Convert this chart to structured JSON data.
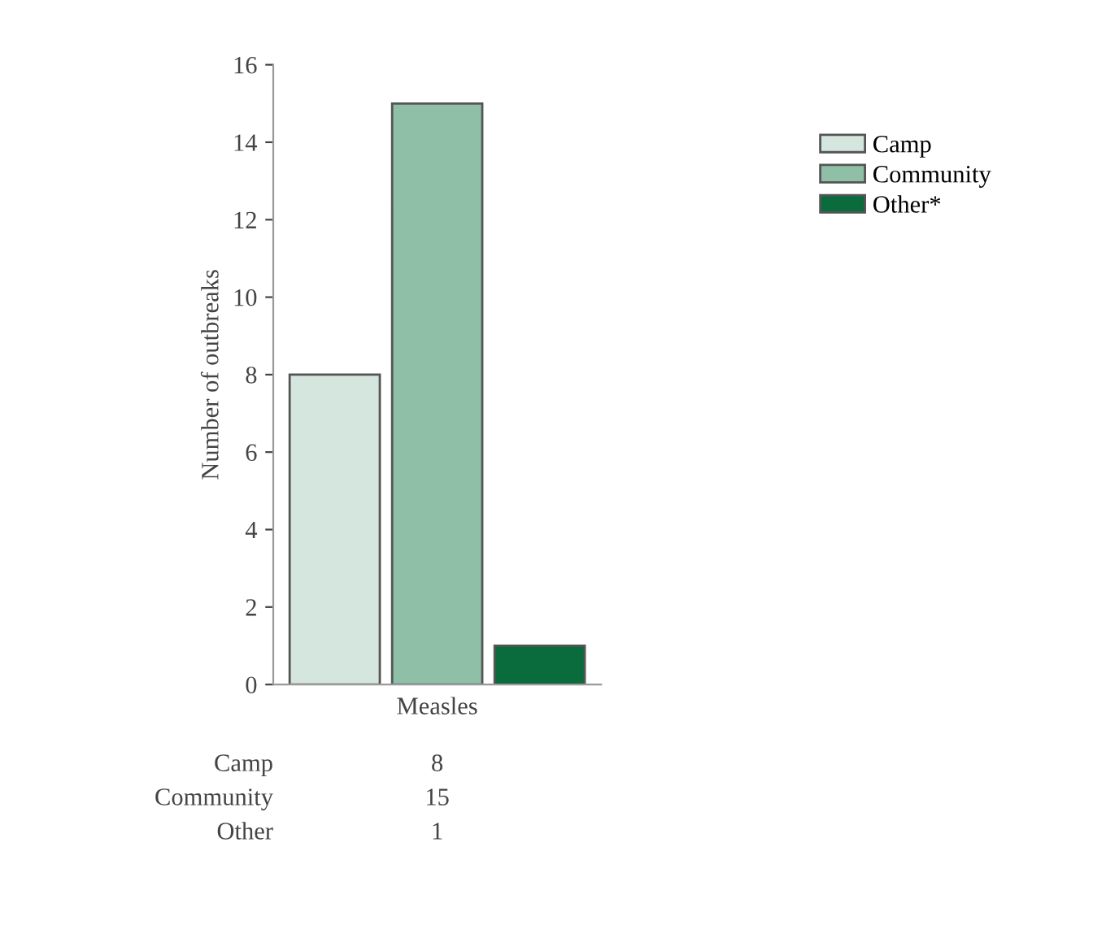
{
  "chart_data": {
    "type": "bar",
    "ylabel": "Number of outbreaks",
    "xlabel": "Measles",
    "categories": [
      null,
      null,
      null
    ],
    "series": [
      {
        "name": "Camp",
        "color": "#d5e6df",
        "values": [
          8,
          null,
          null
        ]
      },
      {
        "name": "Community",
        "color": "#8fbfa6",
        "values": [
          null,
          15,
          null
        ]
      },
      {
        "name": "Other*",
        "color": "#0a6b3c",
        "values": [
          null,
          null,
          1
        ]
      }
    ],
    "annotations": [
      "Camp",
      "8",
      "Community",
      "15",
      "Other",
      "1"
    ],
    "ylim": [
      0,
      16
    ],
    "yticks": [
      0,
      2,
      4,
      6,
      8,
      10,
      12,
      14,
      16
    ],
    "grid": false,
    "legend": "right"
  }
}
